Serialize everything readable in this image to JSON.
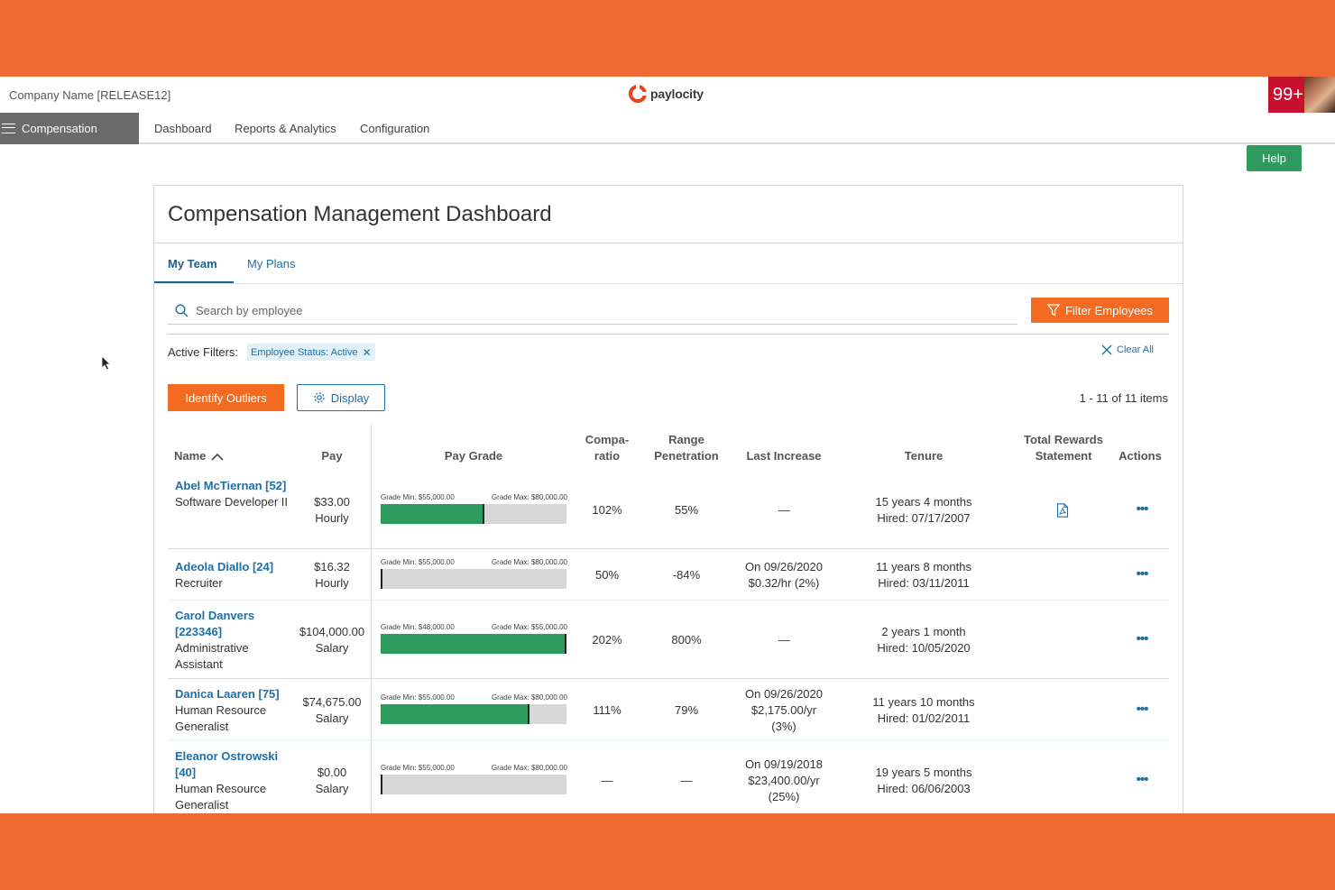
{
  "header": {
    "company": "Company Name [RELEASE12]",
    "logo": "paylocity",
    "notifications": "99+",
    "avatar_icon": "user-avatar"
  },
  "nav": {
    "module": "Compensation",
    "links": [
      "Dashboard",
      "Reports & Analytics",
      "Configuration"
    ],
    "help": "Help"
  },
  "dashboard": {
    "title": "Compensation Management Dashboard",
    "tabs": [
      "My Team",
      "My Plans"
    ],
    "search_placeholder": "Search by employee",
    "filter_button": "Filter Employees",
    "active_filters_label": "Active Filters:",
    "active_filter_chip": "Employee Status: Active",
    "clear_all": "Clear All",
    "identify_outliers": "Identify Outliers",
    "display_button": "Display",
    "items_count": "1 - 11 of 11 items"
  },
  "table": {
    "headers": {
      "name": "Name",
      "pay": "Pay",
      "pay_grade": "Pay Grade",
      "compa_1": "Compa-",
      "compa_2": "ratio",
      "range_1": "Range",
      "range_2": "Penetration",
      "last_increase": "Last Increase",
      "tenure": "Tenure",
      "trs_1": "Total Rewards",
      "trs_2": "Statement",
      "actions": "Actions"
    },
    "rows": [
      {
        "name_link": "Abel McTiernan [52]",
        "title": "Software Developer II",
        "pay": "$33.00",
        "pay_type": "Hourly",
        "grade_min": "Grade Min: $55,000.00",
        "grade_max": "Grade Max: $80,000.00",
        "fill_fraction": 0.55,
        "compa_ratio": "102%",
        "range_penetration": "55%",
        "last_increase_1": "—",
        "last_increase_2": "",
        "last_increase_3": "",
        "tenure": "15 years 4 months",
        "hired": "Hired: 07/17/2007",
        "has_statement": true,
        "actions": "•••"
      },
      {
        "name_link": "Adeola Diallo [24]",
        "title": "Recruiter",
        "pay": "$16.32",
        "pay_type": "Hourly",
        "grade_min": "Grade Min: $55,000.00",
        "grade_max": "Grade Max: $80,000.00",
        "fill_fraction": 0.0,
        "compa_ratio": "50%",
        "range_penetration": "-84%",
        "last_increase_1": "On 09/26/2020",
        "last_increase_2": "$0.32/hr (2%)",
        "last_increase_3": "",
        "tenure": "11 years 8 months",
        "hired": "Hired: 03/11/2011",
        "has_statement": false,
        "actions": "•••"
      },
      {
        "name_link": "Carol Danvers [223346]",
        "title": "Administrative Assistant",
        "pay": "$104,000.00",
        "pay_type": "Salary",
        "grade_min": "Grade Min: $48,000.00",
        "grade_max": "Grade Max: $55,000.00",
        "fill_fraction": 1.0,
        "compa_ratio": "202%",
        "range_penetration": "800%",
        "last_increase_1": "—",
        "last_increase_2": "",
        "last_increase_3": "",
        "tenure": "2 years 1 month",
        "hired": "Hired: 10/05/2020",
        "has_statement": false,
        "actions": "•••"
      },
      {
        "name_link": "Danica Laaren [75]",
        "title": "Human Resource Generalist",
        "pay": "$74,675.00",
        "pay_type": "Salary",
        "grade_min": "Grade Min: $55,000.00",
        "grade_max": "Grade Max: $80,000.00",
        "fill_fraction": 0.79,
        "compa_ratio": "111%",
        "range_penetration": "79%",
        "last_increase_1": "On 09/26/2020",
        "last_increase_2": "$2,175.00/yr",
        "last_increase_3": "(3%)",
        "tenure": "11 years 10 months",
        "hired": "Hired: 01/02/2011",
        "has_statement": false,
        "actions": "•••"
      },
      {
        "name_link": "Eleanor Ostrowski [40]",
        "title": "Human Resource Generalist",
        "pay": "$0.00",
        "pay_type": "Salary",
        "grade_min": "Grade Min: $55,000.00",
        "grade_max": "Grade Max: $80,000.00",
        "fill_fraction": 0.0,
        "compa_ratio": "—",
        "range_penetration": "—",
        "last_increase_1": "On 09/19/2018",
        "last_increase_2": "$23,400.00/yr",
        "last_increase_3": "(25%)",
        "tenure": "19 years 5 months",
        "hired": "Hired: 06/06/2003",
        "has_statement": false,
        "actions": "•••"
      }
    ]
  },
  "colors": {
    "frame": "#ef6a32",
    "accent_orange": "#f26b21",
    "link_blue": "#1e6fa7",
    "grade_green": "#2f9a5d",
    "notification_red": "#c8102e"
  }
}
